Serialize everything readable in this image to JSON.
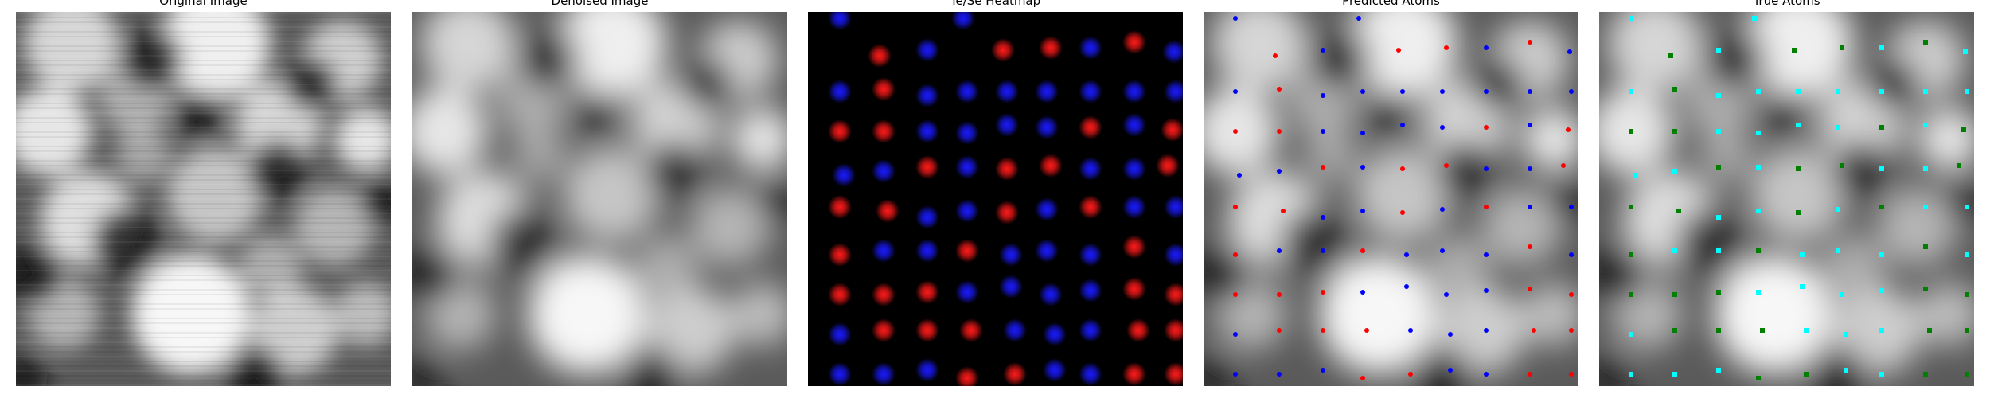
{
  "panels": [
    {
      "key": "original",
      "title": "Original Image",
      "image": "grayscale-stm-image"
    },
    {
      "key": "denoised",
      "title": "Denoised Image",
      "image": "grayscale-stm-image-smoothed"
    },
    {
      "key": "heatmap",
      "title": "Te/Se Heatmap",
      "image": "red-blue-atom-heatmap"
    },
    {
      "key": "predicted",
      "title": "Predicted Atoms",
      "image": "denoised-image-with-red-blue-atom-markers"
    },
    {
      "key": "true",
      "title": "True Atoms",
      "image": "denoised-image-with-cyan-green-atom-markers"
    }
  ],
  "colors": {
    "heatmap_red": "#ff1a1a",
    "heatmap_blue": "#1a1aff",
    "pred_red": "#ff0000",
    "pred_blue": "#0000ff",
    "true_cyan": "#00ffff",
    "true_green": "#008000"
  }
}
